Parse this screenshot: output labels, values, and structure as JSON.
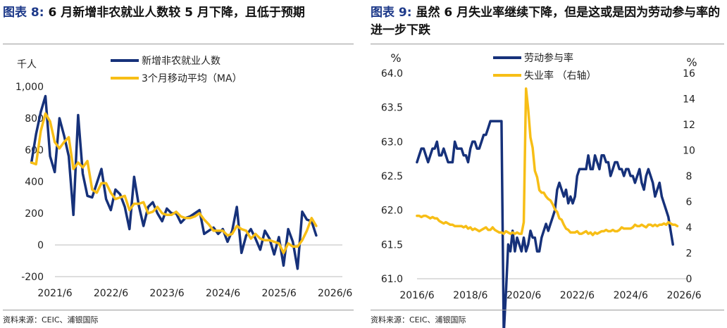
{
  "charts": [
    {
      "title_prefix": "图表 8:",
      "title_text": "6 月新增非农就业人数较 5 月下降，且低于预期",
      "source": "资料来源：CEIC、浦银国际"
    },
    {
      "title_prefix": "图表 9:",
      "title_text": "虽然 6 月失业率继续下降，但是这或是因为劳动参与率的进一步下跌",
      "source": "资料来源：CEIC、浦银国际"
    }
  ],
  "colors": {
    "navy": "#16317a",
    "gold": "#f7be16",
    "text": "#222222"
  },
  "chart_data": [
    {
      "type": "line",
      "ylabel": "千人",
      "ylim": [
        -200,
        1000
      ],
      "yticks": [
        -200,
        0,
        200,
        400,
        600,
        800,
        1000
      ],
      "ytick_labels": [
        "-200",
        "0",
        "200",
        "400",
        "600",
        "800",
        "1,000"
      ],
      "xlim": [
        2021.42,
        2026.55
      ],
      "xticks": [
        2021.42,
        2022.42,
        2023.42,
        2024.42,
        2025.42,
        2026.42
      ],
      "xtick_labels": [
        "2021/6",
        "2022/6",
        "2023/6",
        "2024/6",
        "2025/6",
        "2026/6"
      ],
      "legend_position": "top-center",
      "series": [
        {
          "name": "新增非农就业人数",
          "color": "#16317a",
          "start": [
            2021,
            1
          ],
          "values": [
            520,
            700,
            840,
            940,
            560,
            460,
            800,
            690,
            560,
            190,
            820,
            450,
            310,
            300,
            390,
            480,
            290,
            220,
            350,
            320,
            240,
            100,
            430,
            250,
            120,
            240,
            270,
            200,
            150,
            230,
            200,
            200,
            140,
            170,
            180,
            200,
            220,
            70,
            90,
            110,
            70,
            100,
            20,
            90,
            240,
            -50,
            60,
            100,
            40,
            -30,
            90,
            40,
            -60,
            50,
            -130,
            100,
            20,
            -150,
            210,
            160,
            150,
            60
          ]
        },
        {
          "name": "3个月移动平均（MA）",
          "color": "#f7be16",
          "start": [
            2021,
            1
          ],
          "values": [
            520,
            510,
            720,
            830,
            780,
            650,
            610,
            650,
            680,
            480,
            520,
            490,
            530,
            350,
            330,
            390,
            390,
            330,
            290,
            300,
            310,
            220,
            260,
            260,
            270,
            200,
            210,
            240,
            200,
            190,
            190,
            210,
            180,
            170,
            170,
            180,
            200,
            160,
            130,
            90,
            90,
            90,
            60,
            70,
            120,
            100,
            90,
            40,
            70,
            40,
            30,
            30,
            20,
            10,
            -50,
            10,
            -10,
            -10,
            30,
            90,
            170,
            120
          ]
        }
      ]
    },
    {
      "type": "line",
      "ylabel": "%",
      "ylabel_right": "%",
      "ylim": [
        61.0,
        64.0
      ],
      "yticks": [
        61.0,
        61.5,
        62.0,
        62.5,
        63.0,
        63.5,
        64.0
      ],
      "ytick_labels": [
        "61.0",
        "61.5",
        "62.0",
        "62.5",
        "63.0",
        "63.5",
        "64.0"
      ],
      "ylim_right": [
        0,
        16
      ],
      "yticks_right": [
        0,
        2,
        4,
        6,
        8,
        10,
        12,
        14,
        16
      ],
      "ytick_labels_right": [
        "0",
        "2",
        "4",
        "6",
        "8",
        "10",
        "12",
        "14",
        "16"
      ],
      "xlim": [
        2016.42,
        2026.55
      ],
      "xticks": [
        2016.42,
        2018.42,
        2020.42,
        2022.42,
        2024.42,
        2026.42
      ],
      "xtick_labels": [
        "2016/6",
        "2018/6",
        "2020/6",
        "2022/6",
        "2024/6",
        "2026/6"
      ],
      "legend_position": "top-center",
      "series": [
        {
          "name": "劳动参与率",
          "axis": "left",
          "color": "#16317a",
          "start": [
            2016,
            6
          ],
          "values": [
            62.7,
            62.8,
            62.9,
            62.9,
            62.8,
            62.7,
            62.8,
            62.9,
            62.9,
            63.0,
            62.8,
            62.8,
            62.9,
            62.8,
            62.7,
            62.7,
            62.7,
            63.0,
            62.9,
            62.9,
            62.9,
            62.8,
            62.8,
            62.7,
            62.9,
            63.0,
            63.0,
            62.9,
            62.9,
            63.0,
            63.1,
            63.1,
            63.2,
            63.3,
            63.3,
            63.3,
            63.3,
            63.3,
            63.3,
            60.2,
            60.8,
            61.5,
            61.4,
            61.7,
            61.4,
            61.6,
            61.5,
            61.4,
            61.6,
            61.4,
            61.5,
            61.7,
            61.6,
            61.6,
            61.4,
            61.4,
            61.6,
            61.7,
            61.8,
            61.7,
            61.8,
            61.9,
            62.0,
            62.3,
            62.4,
            62.3,
            62.2,
            62.3,
            62.1,
            62.2,
            62.1,
            62.2,
            62.5,
            62.6,
            62.6,
            62.6,
            62.6,
            62.8,
            62.6,
            62.6,
            62.8,
            62.7,
            62.6,
            62.8,
            62.8,
            62.7,
            62.7,
            62.5,
            62.6,
            62.7,
            62.7,
            62.6,
            62.6,
            62.5,
            62.6,
            62.6,
            62.5,
            62.5,
            62.4,
            62.5,
            62.6,
            62.4,
            62.3,
            62.5,
            62.6,
            62.5,
            62.4,
            62.2,
            62.3,
            62.4,
            62.2,
            62.1,
            62.0,
            61.9,
            61.7,
            61.5
          ]
        },
        {
          "name": "失业率 （右轴）",
          "axis": "right",
          "color": "#f7be16",
          "start": [
            2016,
            6
          ],
          "values": [
            4.9,
            4.9,
            4.8,
            4.9,
            4.9,
            4.8,
            4.7,
            4.8,
            4.7,
            4.7,
            4.5,
            4.4,
            4.3,
            4.4,
            4.3,
            4.2,
            4.2,
            4.1,
            4.1,
            4.1,
            4.1,
            4.0,
            4.1,
            3.9,
            4.0,
            3.8,
            3.9,
            3.8,
            3.7,
            3.8,
            3.9,
            4.0,
            3.8,
            3.8,
            4.0,
            3.8,
            3.7,
            3.6,
            3.6,
            3.5,
            3.7,
            3.6,
            3.5,
            3.6,
            3.5,
            3.6,
            3.5,
            3.5,
            4.4,
            14.8,
            13.2,
            11.0,
            10.2,
            8.4,
            7.9,
            6.9,
            6.7,
            6.7,
            6.4,
            6.2,
            6.1,
            5.8,
            5.4,
            5.2,
            4.7,
            4.6,
            4.2,
            3.9,
            3.8,
            3.6,
            3.6,
            3.6,
            3.7,
            3.5,
            3.5,
            3.6,
            3.7,
            3.5,
            3.6,
            3.4,
            3.6,
            3.5,
            3.6,
            3.7,
            3.7,
            3.8,
            3.7,
            3.7,
            3.8,
            3.7,
            3.7,
            3.8,
            4.0,
            3.9,
            3.9,
            3.9,
            3.9,
            4.0,
            4.2,
            4.1,
            4.1,
            4.2,
            4.1,
            4.0,
            4.2,
            4.2,
            4.1,
            4.2,
            4.1,
            4.2,
            4.2,
            4.3,
            4.2,
            4.4,
            4.3,
            4.2,
            4.2,
            4.1
          ]
        }
      ]
    }
  ]
}
